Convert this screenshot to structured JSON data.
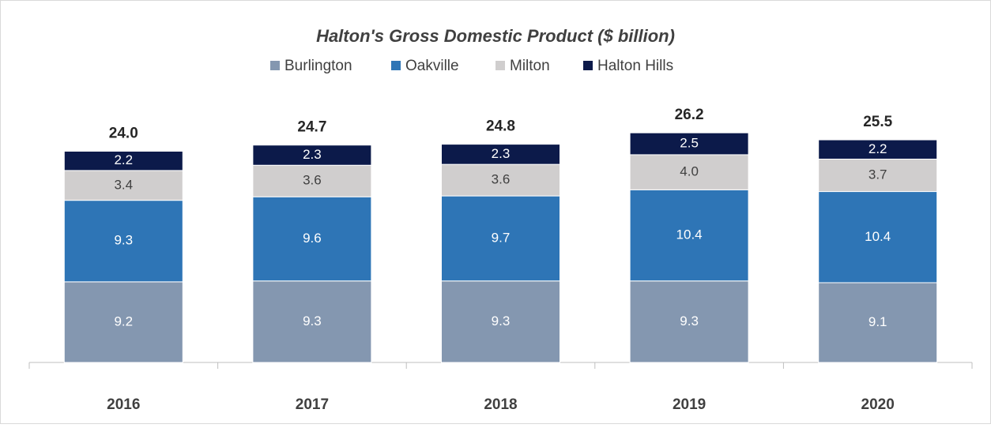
{
  "chart_data": {
    "type": "stacked_bar",
    "title": "Halton's Gross Domestic Product ($ billion)",
    "categories": [
      "2016",
      "2017",
      "2018",
      "2019",
      "2020"
    ],
    "series": [
      {
        "name": "Burlington",
        "color": "#8497b0",
        "values": [
          9.2,
          9.3,
          9.3,
          9.3,
          9.1
        ]
      },
      {
        "name": "Oakville",
        "color": "#2e75b6",
        "values": [
          9.3,
          9.6,
          9.7,
          10.4,
          10.4
        ]
      },
      {
        "name": "Milton",
        "color": "#d0cece",
        "values": [
          3.4,
          3.6,
          3.6,
          4.0,
          3.7
        ],
        "value_labels": [
          "3.4",
          "3.6",
          "3.6",
          "4.0",
          "3.7"
        ]
      },
      {
        "name": "Halton Hills",
        "color": "#0c1a4a",
        "values": [
          2.2,
          2.3,
          2.3,
          2.5,
          2.2
        ]
      }
    ],
    "totals": {
      "values": [
        24.0,
        24.7,
        24.8,
        26.2,
        25.5
      ],
      "value_labels": [
        "24.0",
        "24.7",
        "24.8",
        "26.2",
        "25.5"
      ]
    },
    "ylim": [
      0,
      30
    ],
    "legend": "top"
  }
}
